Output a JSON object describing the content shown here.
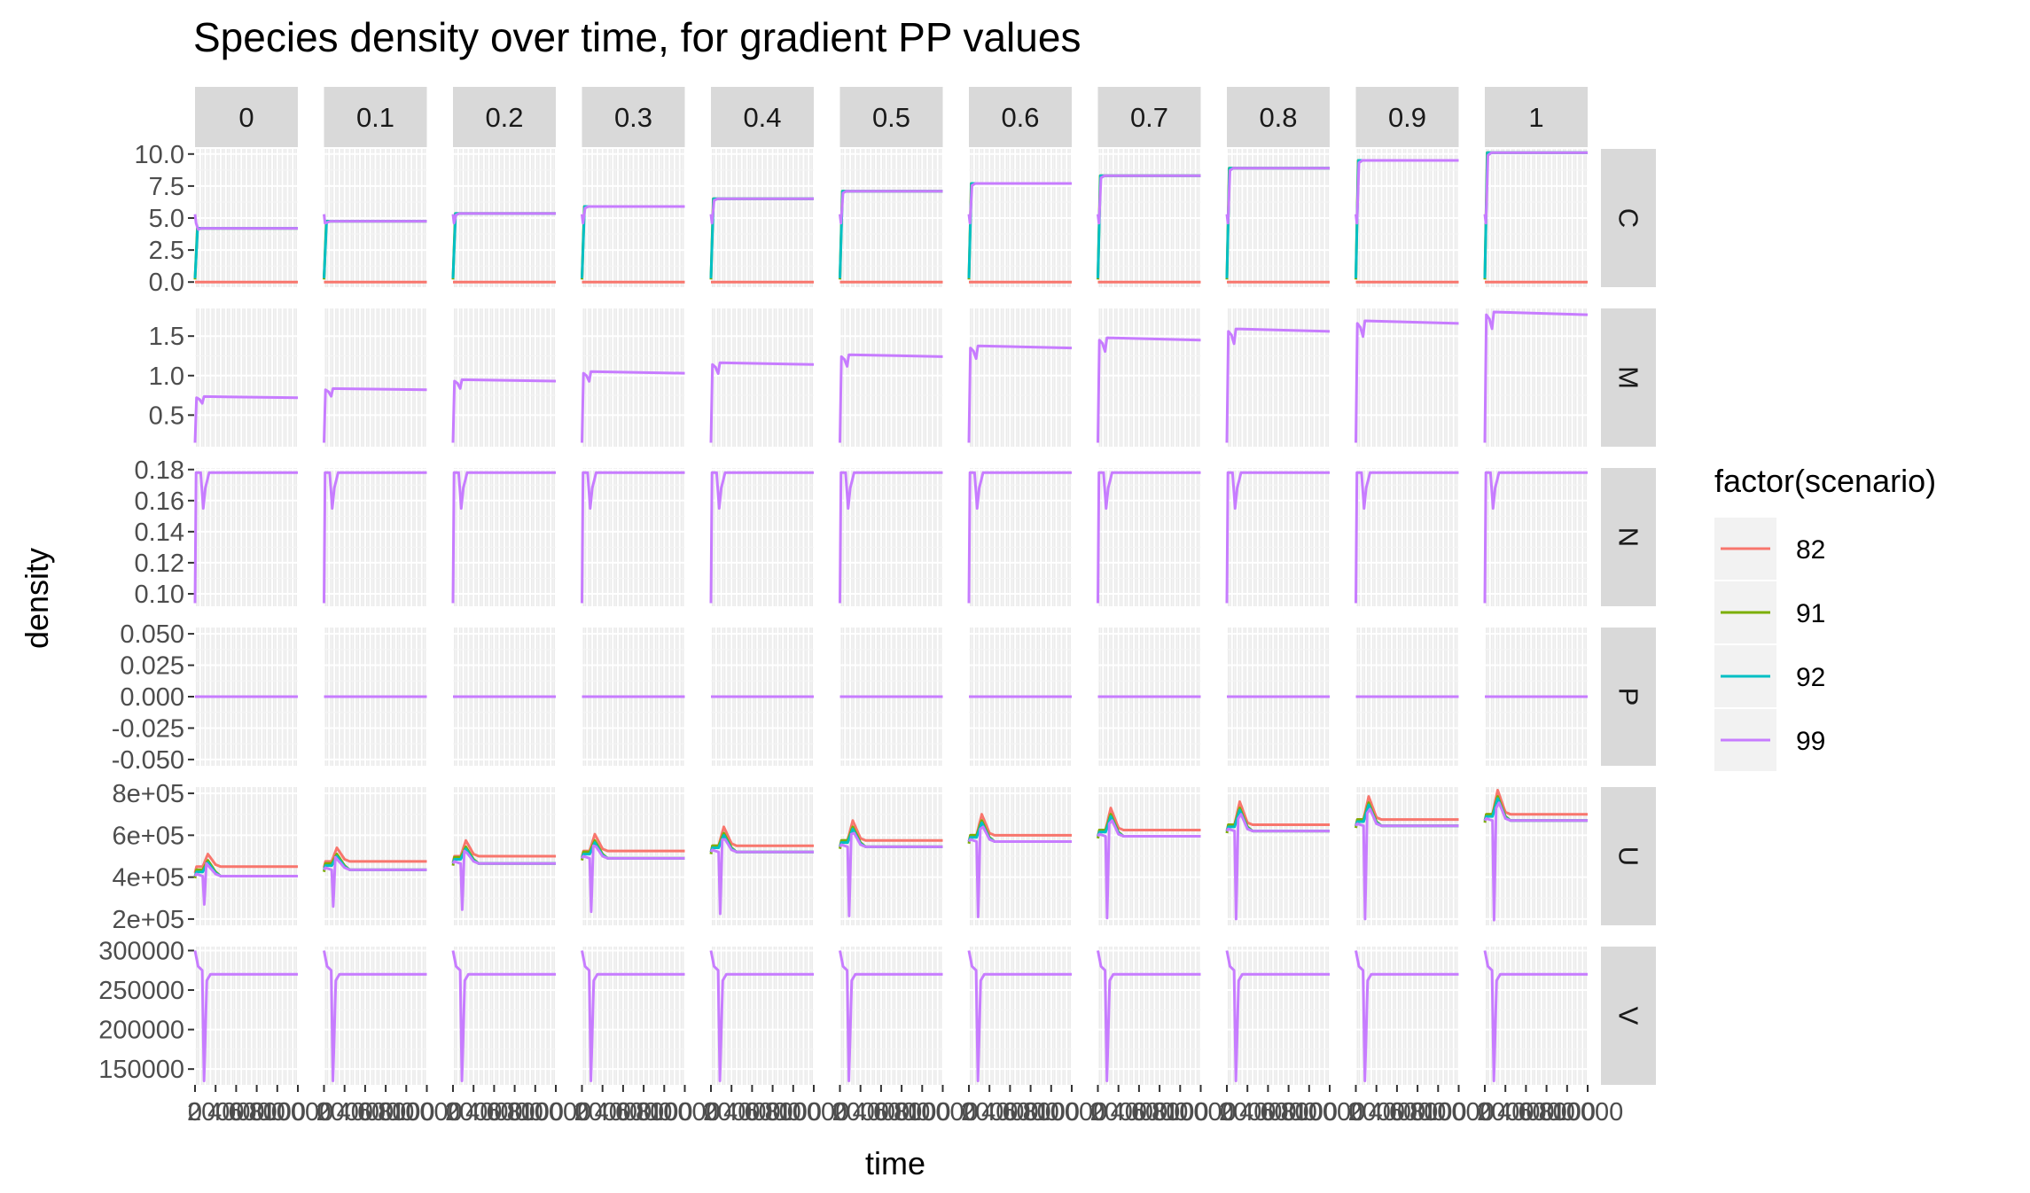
{
  "chart_data": {
    "type": "line",
    "title": "Species density over time, for gradient PP values",
    "xlabel": "time",
    "ylabel": "density",
    "col_facets": [
      "0",
      "0.1",
      "0.2",
      "0.3",
      "0.4",
      "0.5",
      "0.6",
      "0.7",
      "0.8",
      "0.9",
      "1"
    ],
    "row_facets": [
      "C",
      "M",
      "N",
      "P",
      "U",
      "V"
    ],
    "x_range": [
      0,
      40000
    ],
    "x_ticks": [
      "0",
      "2000",
      "4000",
      "6000",
      "8000",
      "10000"
    ],
    "grid": true,
    "legend": {
      "title": "factor(scenario)",
      "placement": "right",
      "entries": [
        {
          "label": "82",
          "color": "#F8766D"
        },
        {
          "label": "91",
          "color": "#7CAE00"
        },
        {
          "label": "92",
          "color": "#00BFC4"
        },
        {
          "label": "99",
          "color": "#C77CFF"
        }
      ]
    },
    "rows": [
      {
        "name": "C",
        "ylim": [
          -0.4,
          10.4
        ],
        "ticks": [
          0,
          2.5,
          5,
          7.5,
          10
        ],
        "tick_labels": [
          "0.0",
          "2.5",
          "5.0",
          "7.5",
          "10.0"
        ],
        "plateau_by_pp": [
          4.2,
          4.75,
          5.35,
          5.9,
          6.5,
          7.1,
          7.7,
          8.3,
          8.9,
          9.5,
          10.1
        ],
        "scenario_82": 0
      },
      {
        "name": "M",
        "ylim": [
          0.1,
          1.85
        ],
        "ticks": [
          0.5,
          1.0,
          1.5
        ],
        "tick_labels": [
          "0.5",
          "1.0",
          "1.5"
        ],
        "plateau_by_pp": [
          0.72,
          0.82,
          0.93,
          1.03,
          1.14,
          1.24,
          1.35,
          1.45,
          1.56,
          1.66,
          1.77
        ]
      },
      {
        "name": "N",
        "ylim": [
          0.092,
          0.181
        ],
        "ticks": [
          0.1,
          0.12,
          0.14,
          0.16,
          0.18
        ],
        "tick_labels": [
          "0.10",
          "0.12",
          "0.14",
          "0.16",
          "0.18"
        ],
        "plateau": 0.178,
        "dip": 0.155
      },
      {
        "name": "P",
        "ylim": [
          -0.055,
          0.055
        ],
        "ticks": [
          -0.05,
          -0.025,
          0,
          0.025,
          0.05
        ],
        "tick_labels": [
          "-0.050",
          "-0.025",
          "0.000",
          "0.025",
          "0.050"
        ],
        "value": 0
      },
      {
        "name": "U",
        "ylim": [
          170000,
          830000
        ],
        "ticks": [
          200000,
          400000,
          600000,
          800000
        ],
        "tick_labels": [
          "2e+05",
          "4e+05",
          "6e+05",
          "8e+05"
        ],
        "scenario_82_plateau": [
          450000,
          475000,
          500000,
          525000,
          550000,
          575000,
          600000,
          625000,
          650000,
          675000,
          700000
        ],
        "scenario_82_peak": [
          510000,
          540000,
          575000,
          605000,
          640000,
          670000,
          700000,
          730000,
          760000,
          785000,
          815000
        ],
        "scenario_99_plateau": [
          405000,
          435000,
          465000,
          490000,
          520000,
          545000,
          570000,
          595000,
          620000,
          645000,
          670000
        ],
        "scenario_99_min": [
          270000,
          260000,
          245000,
          235000,
          225000,
          215000,
          210000,
          205000,
          200000,
          200000,
          195000
        ]
      },
      {
        "name": "V",
        "ylim": [
          130000,
          305000
        ],
        "ticks": [
          150000,
          200000,
          250000,
          300000
        ],
        "tick_labels": [
          "150000",
          "200000",
          "250000",
          "300000"
        ],
        "start": 300000,
        "plateau": 270000,
        "min": 135000
      }
    ]
  }
}
